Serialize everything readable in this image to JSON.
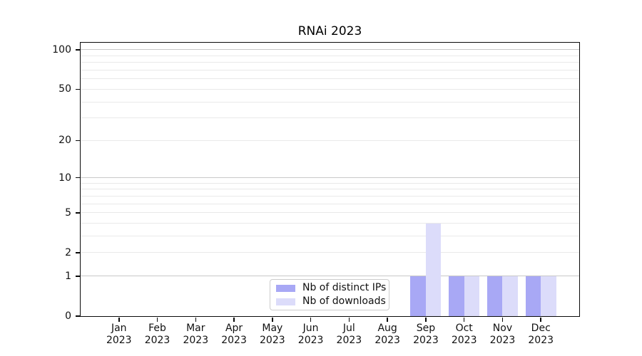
{
  "chart_data": {
    "type": "bar",
    "title": "RNAi 2023",
    "months": [
      "Jan",
      "Feb",
      "Mar",
      "Apr",
      "May",
      "Jun",
      "Jul",
      "Aug",
      "Sep",
      "Oct",
      "Nov",
      "Dec"
    ],
    "year": "2023",
    "series": [
      {
        "name": "Nb of distinct IPs",
        "color": "#a8a8f5",
        "values": [
          0,
          0,
          0,
          0,
          0,
          0,
          0,
          0,
          1,
          1,
          1,
          1
        ]
      },
      {
        "name": "Nb of downloads",
        "color": "#dcdcfa",
        "values": [
          0,
          0,
          0,
          0,
          0,
          0,
          0,
          0,
          4,
          1,
          1,
          1
        ]
      }
    ],
    "yscale": "log1p",
    "ylim": [
      0,
      113.25
    ],
    "y_ticks": [
      0,
      1,
      2,
      5,
      10,
      20,
      50,
      100
    ],
    "y_major_gridlines": [
      1,
      10,
      100
    ],
    "y_minor_gridlines": [
      2,
      3,
      4,
      5,
      6,
      7,
      8,
      9,
      20,
      30,
      40,
      50,
      60,
      70,
      80,
      90
    ],
    "xlabel": "",
    "ylabel": "",
    "grid": "horizontal",
    "legend_position": "lower center",
    "colors": {
      "grid_major": "#c8c8c8",
      "grid_minor": "#e9e9e9",
      "spine": "#0a0a0a",
      "background": "#ffffff"
    }
  }
}
